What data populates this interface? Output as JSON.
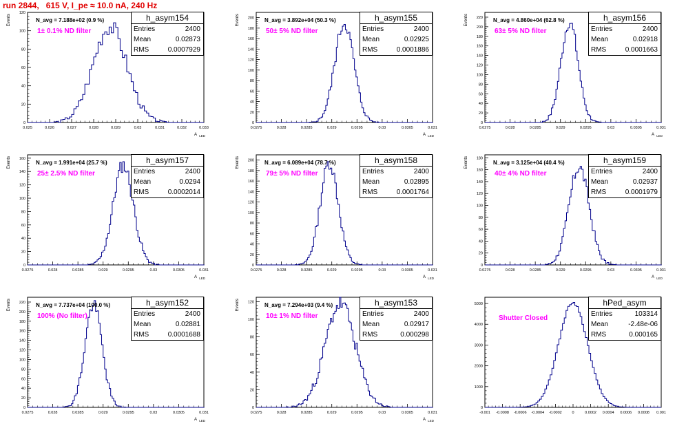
{
  "run_title": "run 2844,   615 V, I_pe ≈ 10.0 nA, 240 Hz",
  "stats_labels": {
    "entries": "Entries",
    "mean": "Mean",
    "rms": "RMS"
  },
  "colors": {
    "title": "#e00000",
    "hist": "#00008b",
    "filter_label": "#ff00ff",
    "axes": "#000000"
  },
  "chart_data": [
    {
      "type": "histogram",
      "hist_name": "h_asym154",
      "entries": "2400",
      "mean": "0.02873",
      "rms": "0.0007929",
      "n_avg": "N_avg = 7.188e+02 (0.9 %)",
      "filter": "1± 0.1% ND filter",
      "xlabel": "A_{LED}",
      "ylabel": "Events",
      "xlim": [
        0.025,
        0.033
      ],
      "ylim": [
        0,
        120
      ],
      "xticks": [
        0.025,
        0.026,
        0.027,
        0.028,
        0.029,
        0.03,
        0.031,
        0.032,
        0.033
      ],
      "xtick_labels": [
        "0.025",
        "0.026",
        "0.027",
        "0.028",
        "0.029",
        "0.03",
        "0.031",
        "0.032",
        "0.033"
      ],
      "yticks": [
        0,
        20,
        40,
        60,
        80,
        100,
        120
      ],
      "ytick_labels": [
        "0",
        "20",
        "40",
        "60",
        "80",
        "100",
        "120"
      ],
      "dist": {
        "mu": 0.02873,
        "sigma": 0.00077,
        "peak": 105,
        "step": 0.0001,
        "seed": 3
      }
    },
    {
      "type": "histogram",
      "hist_name": "h_asym155",
      "entries": "2400",
      "mean": "0.02925",
      "rms": "0.0001886",
      "n_avg": "N_avg = 3.892e+04 (50.3 %)",
      "filter": "50± 5% ND filter",
      "xlabel": "A_{LED}",
      "ylabel": "Events",
      "xlim": [
        0.0275,
        0.031
      ],
      "ylim": [
        0,
        210
      ],
      "xticks": [
        0.0275,
        0.028,
        0.0285,
        0.029,
        0.0295,
        0.03,
        0.0305,
        0.031
      ],
      "xtick_labels": [
        "0.0275",
        "0.028",
        "0.0285",
        "0.029",
        "0.0295",
        "0.03",
        "0.0305",
        "0.031"
      ],
      "yticks": [
        0,
        20,
        40,
        60,
        80,
        100,
        120,
        140,
        160,
        180,
        200
      ],
      "ytick_labels": [
        "0",
        "20",
        "40",
        "60",
        "80",
        "100",
        "120",
        "140",
        "160",
        "180",
        "200"
      ],
      "dist": {
        "mu": 0.02925,
        "sigma": 0.00019,
        "peak": 190,
        "step": 3e-05,
        "seed": 5
      }
    },
    {
      "type": "histogram",
      "hist_name": "h_asym156",
      "entries": "2400",
      "mean": "0.02918",
      "rms": "0.0001663",
      "n_avg": "N_avg = 4.860e+04 (62.8 %)",
      "filter": "63± 5% ND filter",
      "xlabel": "A_{LED}",
      "ylabel": "Events",
      "xlim": [
        0.0275,
        0.031
      ],
      "ylim": [
        0,
        230
      ],
      "xticks": [
        0.0275,
        0.028,
        0.0285,
        0.029,
        0.0295,
        0.03,
        0.0305,
        0.031
      ],
      "xtick_labels": [
        "0.0275",
        "0.028",
        "0.0285",
        "0.029",
        "0.0295",
        "0.03",
        "0.0305",
        "0.031"
      ],
      "yticks": [
        0,
        20,
        40,
        60,
        80,
        100,
        120,
        140,
        160,
        180,
        200,
        220
      ],
      "ytick_labels": [
        "0",
        "20",
        "40",
        "60",
        "80",
        "100",
        "120",
        "140",
        "160",
        "180",
        "200",
        "220"
      ],
      "dist": {
        "mu": 0.02918,
        "sigma": 0.00017,
        "peak": 210,
        "step": 3e-05,
        "seed": 7
      }
    },
    {
      "type": "histogram",
      "hist_name": "h_asym157",
      "entries": "2400",
      "mean": "0.0294",
      "rms": "0.0002014",
      "n_avg": "N_avg = 1.991e+04 (25.7 %)",
      "filter": "25± 2.5% ND filter",
      "xlabel": "A_{LED}",
      "ylabel": "Events",
      "xlim": [
        0.0275,
        0.031
      ],
      "ylim": [
        0,
        165
      ],
      "xticks": [
        0.0275,
        0.028,
        0.0285,
        0.029,
        0.0295,
        0.03,
        0.0305,
        0.031
      ],
      "xtick_labels": [
        "0.0275",
        "0.028",
        "0.0285",
        "0.029",
        "0.0295",
        "0.03",
        "0.0305",
        "0.031"
      ],
      "yticks": [
        0,
        20,
        40,
        60,
        80,
        100,
        120,
        140,
        160
      ],
      "ytick_labels": [
        "0",
        "20",
        "40",
        "60",
        "80",
        "100",
        "120",
        "140",
        "160"
      ],
      "dist": {
        "mu": 0.0294,
        "sigma": 0.0002,
        "peak": 150,
        "step": 3e-05,
        "seed": 11
      }
    },
    {
      "type": "histogram",
      "hist_name": "h_asym158",
      "entries": "2400",
      "mean": "0.02895",
      "rms": "0.0001764",
      "n_avg": "N_avg = 6.089e+04 (78.7 %)",
      "filter": "79± 5% ND filter",
      "xlabel": "A_{LED}",
      "ylabel": "Events",
      "xlim": [
        0.0275,
        0.031
      ],
      "ylim": [
        0,
        210
      ],
      "xticks": [
        0.0275,
        0.028,
        0.0285,
        0.029,
        0.0295,
        0.03,
        0.0305,
        0.031
      ],
      "xtick_labels": [
        "0.0275",
        "0.028",
        "0.0285",
        "0.029",
        "0.0295",
        "0.03",
        "0.0305",
        "0.031"
      ],
      "yticks": [
        0,
        20,
        40,
        60,
        80,
        100,
        120,
        140,
        160,
        180,
        200
      ],
      "ytick_labels": [
        "0",
        "20",
        "40",
        "60",
        "80",
        "100",
        "120",
        "140",
        "160",
        "180",
        "200"
      ],
      "dist": {
        "mu": 0.02895,
        "sigma": 0.00018,
        "peak": 195,
        "step": 3e-05,
        "seed": 13
      }
    },
    {
      "type": "histogram",
      "hist_name": "h_asym159",
      "entries": "2400",
      "mean": "0.02937",
      "rms": "0.0001979",
      "n_avg": "N_avg = 3.125e+04 (40.4 %)",
      "filter": "40± 4% ND filter",
      "xlabel": "A_{LED}",
      "ylabel": "Events",
      "xlim": [
        0.0275,
        0.031
      ],
      "ylim": [
        0,
        185
      ],
      "xticks": [
        0.0275,
        0.028,
        0.0285,
        0.029,
        0.0295,
        0.03,
        0.0305,
        0.031
      ],
      "xtick_labels": [
        "0.0275",
        "0.028",
        "0.0285",
        "0.029",
        "0.0295",
        "0.03",
        "0.0305",
        "0.031"
      ],
      "yticks": [
        0,
        20,
        40,
        60,
        80,
        100,
        120,
        140,
        160,
        180
      ],
      "ytick_labels": [
        "0",
        "20",
        "40",
        "60",
        "80",
        "100",
        "120",
        "140",
        "160",
        "180"
      ],
      "dist": {
        "mu": 0.02937,
        "sigma": 0.0002,
        "peak": 165,
        "step": 3e-05,
        "seed": 17
      }
    },
    {
      "type": "histogram",
      "hist_name": "h_asym152",
      "entries": "2400",
      "mean": "0.02881",
      "rms": "0.0001688",
      "n_avg": "N_avg = 7.737e+04 (100.0 %)",
      "filter": "100% (No filter)",
      "xlabel": "A_{LED}",
      "ylabel": "Events",
      "xlim": [
        0.0275,
        0.031
      ],
      "ylim": [
        0,
        230
      ],
      "xticks": [
        0.0275,
        0.028,
        0.0285,
        0.029,
        0.0295,
        0.03,
        0.0305,
        0.031
      ],
      "xtick_labels": [
        "0.0275",
        "0.028",
        "0.0285",
        "0.029",
        "0.0295",
        "0.03",
        "0.0305",
        "0.031"
      ],
      "yticks": [
        0,
        20,
        40,
        60,
        80,
        100,
        120,
        140,
        160,
        180,
        200,
        220
      ],
      "ytick_labels": [
        "0",
        "20",
        "40",
        "60",
        "80",
        "100",
        "120",
        "140",
        "160",
        "180",
        "200",
        "220"
      ],
      "dist": {
        "mu": 0.02881,
        "sigma": 0.00017,
        "peak": 215,
        "step": 3e-05,
        "seed": 19
      }
    },
    {
      "type": "histogram",
      "hist_name": "h_asym153",
      "entries": "2400",
      "mean": "0.02917",
      "rms": "0.000298",
      "n_avg": "N_avg = 7.294e+03 (9.4 %)",
      "filter": "10± 1% ND filter",
      "xlabel": "A_{LED}",
      "ylabel": "Events",
      "xlim": [
        0.0275,
        0.031
      ],
      "ylim": [
        0,
        125
      ],
      "xticks": [
        0.0275,
        0.028,
        0.0285,
        0.029,
        0.0295,
        0.03,
        0.0305,
        0.031
      ],
      "xtick_labels": [
        "0.0275",
        "0.028",
        "0.0285",
        "0.029",
        "0.0295",
        "0.03",
        "0.0305",
        "0.031"
      ],
      "yticks": [
        0,
        20,
        40,
        60,
        80,
        100,
        120
      ],
      "ytick_labels": [
        "0",
        "20",
        "40",
        "60",
        "80",
        "100",
        "120"
      ],
      "dist": {
        "mu": 0.02917,
        "sigma": 0.0003,
        "peak": 118,
        "step": 3e-05,
        "seed": 23
      }
    },
    {
      "type": "histogram",
      "hist_name": "hPed_asym",
      "entries": "103314",
      "mean": "-2.48e-06",
      "rms": "0.000165",
      "n_avg": "",
      "filter": "Shutter Closed",
      "xlabel": "",
      "ylabel": "",
      "xlim": [
        -0.001,
        0.001
      ],
      "ylim": [
        0,
        5300
      ],
      "xticks": [
        -0.001,
        -0.0008,
        -0.0006,
        -0.0004,
        -0.0002,
        0,
        0.0002,
        0.0004,
        0.0006,
        0.0008,
        0.001
      ],
      "xtick_labels": [
        "-0.001",
        "-0.0008",
        "-0.0006",
        "-0.0004",
        "-0.0002",
        "0",
        "0.0002",
        "0.0004",
        "0.0006",
        "0.0008",
        "0.001"
      ],
      "yticks": [
        0,
        1000,
        2000,
        3000,
        4000,
        5000
      ],
      "ytick_labels": [
        "0",
        "1000",
        "2000",
        "3000",
        "4000",
        "5000"
      ],
      "dist": {
        "mu": 0.0,
        "sigma": 0.000165,
        "peak": 5050,
        "step": 2e-05,
        "seed": 29
      }
    }
  ]
}
